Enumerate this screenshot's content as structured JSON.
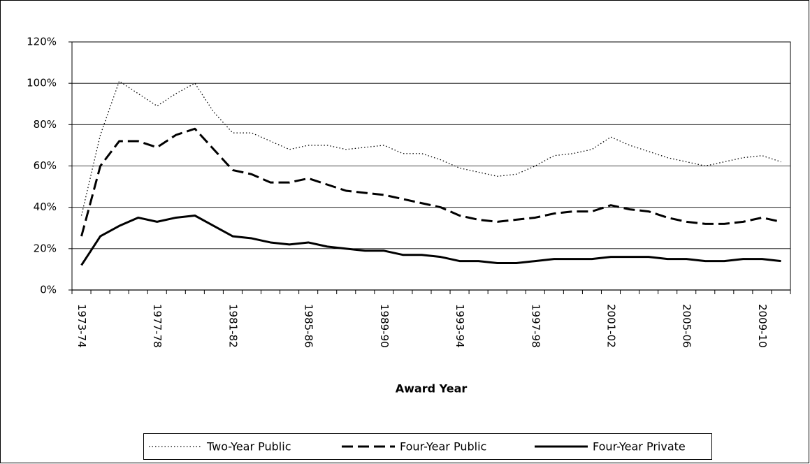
{
  "chart_data": {
    "type": "line",
    "x_label": "Award Year",
    "categories": [
      "1973-74",
      null,
      null,
      null,
      "1977-78",
      null,
      null,
      null,
      "1981-82",
      null,
      null,
      null,
      "1985-86",
      null,
      null,
      null,
      "1989-90",
      null,
      null,
      null,
      "1993-94",
      null,
      null,
      null,
      "1997-98",
      null,
      null,
      null,
      "2001-02",
      null,
      null,
      null,
      "2005-06",
      null,
      null,
      null,
      "2009-10",
      null
    ],
    "series": [
      {
        "name": "Two-Year Public",
        "color": "#000000",
        "style": "dotted",
        "values": [
          36,
          75,
          101,
          95,
          89,
          95,
          100,
          86,
          76,
          76,
          72,
          68,
          70,
          70,
          68,
          69,
          70,
          66,
          66,
          63,
          59,
          57,
          55,
          56,
          60,
          65,
          66,
          68,
          74,
          70,
          67,
          64,
          62,
          60,
          62,
          64,
          65,
          62
        ]
      },
      {
        "name": "Four-Year Public",
        "color": "#000000",
        "style": "dashed",
        "values": [
          26,
          60,
          72,
          72,
          69,
          75,
          78,
          68,
          58,
          56,
          52,
          52,
          54,
          51,
          48,
          47,
          46,
          44,
          42,
          40,
          36,
          34,
          33,
          34,
          35,
          37,
          38,
          38,
          41,
          39,
          38,
          35,
          33,
          32,
          32,
          33,
          35,
          33
        ]
      },
      {
        "name": "Four-Year Private",
        "color": "#000000",
        "style": "solid",
        "values": [
          12,
          26,
          31,
          35,
          33,
          35,
          36,
          31,
          26,
          25,
          23,
          22,
          23,
          21,
          20,
          19,
          19,
          17,
          17,
          16,
          14,
          14,
          13,
          13,
          14,
          15,
          15,
          15,
          16,
          16,
          16,
          15,
          15,
          14,
          14,
          15,
          15,
          14
        ]
      }
    ],
    "ylim": [
      0,
      120
    ],
    "yticks": [
      {
        "value": 0,
        "label": "0%"
      },
      {
        "value": 20,
        "label": "20%"
      },
      {
        "value": 40,
        "label": "40%"
      },
      {
        "value": 60,
        "label": "60%"
      },
      {
        "value": 80,
        "label": "80%"
      },
      {
        "value": 100,
        "label": "100%"
      },
      {
        "value": 120,
        "label": "120%"
      }
    ],
    "grid": true,
    "legend": "bottom"
  }
}
